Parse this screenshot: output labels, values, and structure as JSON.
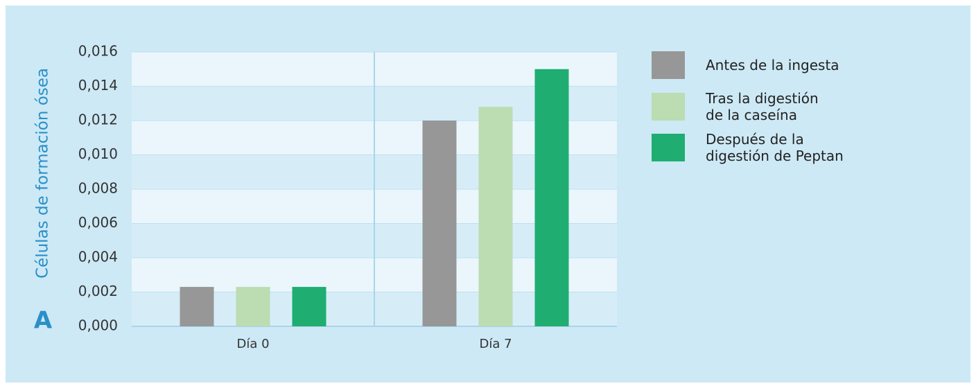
{
  "chart_data": {
    "type": "bar",
    "panel_label": "A",
    "y_label": "Células de formación ósea",
    "categories": [
      "Día 0",
      "Día 7"
    ],
    "series": [
      {
        "name": "Antes de la ingesta",
        "color": "#979797",
        "values": [
          0.0023,
          0.012
        ]
      },
      {
        "name": "Tras la digestión\nde la caseína",
        "color": "#bcdcb2",
        "values": [
          0.0023,
          0.0128
        ]
      },
      {
        "name": "Después de la\ndigestión de Peptan",
        "color": "#1fad72",
        "values": [
          0.0023,
          0.015
        ]
      }
    ],
    "ylim": [
      0,
      0.016
    ],
    "yticks": [
      {
        "value": 0,
        "label": "0,000"
      },
      {
        "value": 0.002,
        "label": "0,002"
      },
      {
        "value": 0.004,
        "label": "0,004"
      },
      {
        "value": 0.006,
        "label": "0,006"
      },
      {
        "value": 0.008,
        "label": "0,008"
      },
      {
        "value": 0.01,
        "label": "0,010"
      },
      {
        "value": 0.012,
        "label": "0,012"
      },
      {
        "value": 0.014,
        "label": "0,014"
      },
      {
        "value": 0.016,
        "label": "0,016"
      }
    ],
    "grid": true,
    "legend": "right"
  }
}
